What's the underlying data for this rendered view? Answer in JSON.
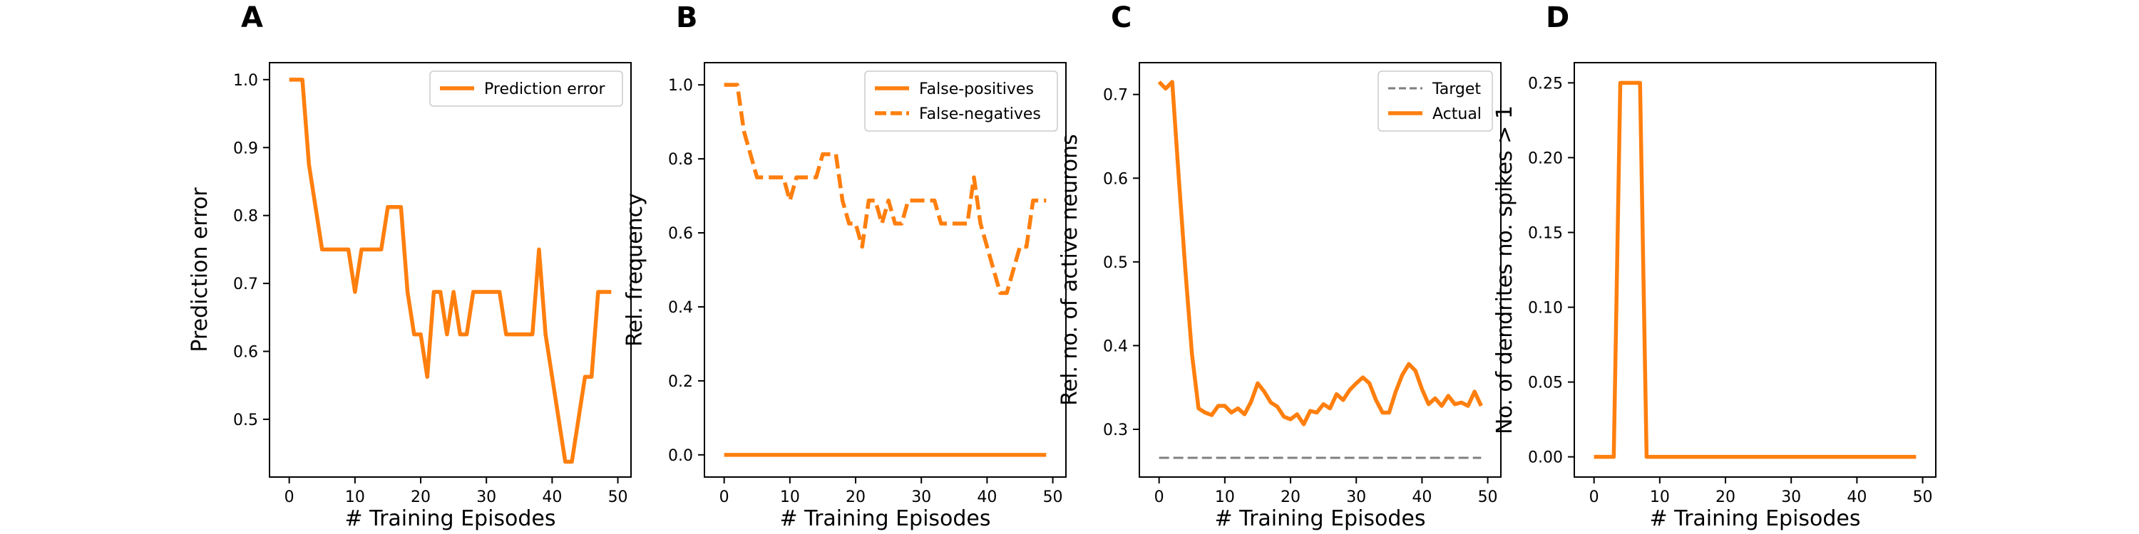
{
  "colors": {
    "series": "#ff7f0e",
    "target": "#7f7f7f",
    "axis": "#000000",
    "legend_border": "#cccccc"
  },
  "panels": [
    {
      "letter": "A",
      "chart_data": {
        "type": "line",
        "xlabel": "# Training Episodes",
        "ylabel": "Prediction error",
        "xlim": [
          -3,
          52
        ],
        "ylim": [
          0.415,
          1.025
        ],
        "xticks": [
          0,
          10,
          20,
          30,
          40,
          50
        ],
        "yticks": [
          0.5,
          0.6,
          0.7,
          0.8,
          0.9,
          1.0
        ],
        "ytick_labels": [
          "0.5",
          "0.6",
          "0.7",
          "0.8",
          "0.9",
          "1.0"
        ],
        "legend": {
          "position": "top-right"
        },
        "series": [
          {
            "name": "Prediction error",
            "style": "solid",
            "x": [
              0,
              1,
              2,
              3,
              4,
              5,
              6,
              7,
              8,
              9,
              10,
              11,
              12,
              13,
              14,
              15,
              16,
              17,
              18,
              19,
              20,
              21,
              22,
              23,
              24,
              25,
              26,
              27,
              28,
              29,
              30,
              31,
              32,
              33,
              34,
              35,
              36,
              37,
              38,
              39,
              40,
              41,
              42,
              43,
              44,
              45,
              46,
              47,
              48,
              49
            ],
            "y": [
              1.0,
              1.0,
              1.0,
              0.875,
              0.8125,
              0.75,
              0.75,
              0.75,
              0.75,
              0.75,
              0.6875,
              0.75,
              0.75,
              0.75,
              0.75,
              0.8125,
              0.8125,
              0.8125,
              0.6875,
              0.625,
              0.625,
              0.5625,
              0.6875,
              0.6875,
              0.625,
              0.6875,
              0.625,
              0.625,
              0.6875,
              0.6875,
              0.6875,
              0.6875,
              0.6875,
              0.625,
              0.625,
              0.625,
              0.625,
              0.625,
              0.75,
              0.625,
              0.5625,
              0.5,
              0.4375,
              0.4375,
              0.5,
              0.5625,
              0.5625,
              0.6875,
              0.6875,
              0.6875
            ]
          }
        ]
      }
    },
    {
      "letter": "B",
      "chart_data": {
        "type": "line",
        "xlabel": "# Training Episodes",
        "ylabel": "Rel. frequency",
        "xlim": [
          -3,
          52
        ],
        "ylim": [
          -0.06,
          1.06
        ],
        "xticks": [
          0,
          10,
          20,
          30,
          40,
          50
        ],
        "yticks": [
          0.0,
          0.2,
          0.4,
          0.6,
          0.8,
          1.0
        ],
        "ytick_labels": [
          "0.0",
          "0.2",
          "0.4",
          "0.6",
          "0.8",
          "1.0"
        ],
        "legend": {
          "position": "top-right"
        },
        "series": [
          {
            "name": "False-positives",
            "style": "solid",
            "x": [
              0,
              49
            ],
            "y": [
              0,
              0
            ]
          },
          {
            "name": "False-negatives",
            "style": "dashed",
            "x": [
              0,
              1,
              2,
              3,
              4,
              5,
              6,
              7,
              8,
              9,
              10,
              11,
              12,
              13,
              14,
              15,
              16,
              17,
              18,
              19,
              20,
              21,
              22,
              23,
              24,
              25,
              26,
              27,
              28,
              29,
              30,
              31,
              32,
              33,
              34,
              35,
              36,
              37,
              38,
              39,
              40,
              41,
              42,
              43,
              44,
              45,
              46,
              47,
              48,
              49
            ],
            "y": [
              1.0,
              1.0,
              1.0,
              0.875,
              0.8125,
              0.75,
              0.75,
              0.75,
              0.75,
              0.75,
              0.6875,
              0.75,
              0.75,
              0.75,
              0.75,
              0.8125,
              0.8125,
              0.8125,
              0.6875,
              0.625,
              0.625,
              0.5625,
              0.6875,
              0.6875,
              0.625,
              0.6875,
              0.625,
              0.625,
              0.6875,
              0.6875,
              0.6875,
              0.6875,
              0.6875,
              0.625,
              0.625,
              0.625,
              0.625,
              0.625,
              0.75,
              0.625,
              0.5625,
              0.5,
              0.4375,
              0.4375,
              0.5,
              0.5625,
              0.5625,
              0.6875,
              0.6875,
              0.6875
            ]
          }
        ]
      }
    },
    {
      "letter": "C",
      "chart_data": {
        "type": "line",
        "xlabel": "# Training Episodes",
        "ylabel": "Rel. no. of active neurons",
        "xlim": [
          -3,
          52
        ],
        "ylim": [
          0.243,
          0.738
        ],
        "xticks": [
          0,
          10,
          20,
          30,
          40,
          50
        ],
        "yticks": [
          0.3,
          0.4,
          0.5,
          0.6,
          0.7
        ],
        "ytick_labels": [
          "0.3",
          "0.4",
          "0.5",
          "0.6",
          "0.7"
        ],
        "legend": {
          "position": "top-right"
        },
        "series": [
          {
            "name": "Target",
            "style": "dashed-thin",
            "color": "#7f7f7f",
            "x": [
              0,
              49
            ],
            "y": [
              0.266,
              0.266
            ]
          },
          {
            "name": "Actual",
            "style": "solid",
            "x": [
              0,
              1,
              2,
              3,
              4,
              5,
              6,
              7,
              8,
              9,
              10,
              11,
              12,
              13,
              14,
              15,
              16,
              17,
              18,
              19,
              20,
              21,
              22,
              23,
              24,
              25,
              26,
              27,
              28,
              29,
              30,
              31,
              32,
              33,
              34,
              35,
              36,
              37,
              38,
              39,
              40,
              41,
              42,
              43,
              44,
              45,
              46,
              47,
              48,
              49
            ],
            "y": [
              0.715,
              0.707,
              0.715,
              0.6,
              0.49,
              0.39,
              0.325,
              0.32,
              0.317,
              0.328,
              0.328,
              0.32,
              0.325,
              0.318,
              0.333,
              0.355,
              0.345,
              0.332,
              0.327,
              0.315,
              0.312,
              0.318,
              0.306,
              0.322,
              0.32,
              0.33,
              0.325,
              0.342,
              0.335,
              0.347,
              0.355,
              0.362,
              0.355,
              0.335,
              0.32,
              0.32,
              0.345,
              0.365,
              0.378,
              0.37,
              0.348,
              0.33,
              0.337,
              0.328,
              0.34,
              0.33,
              0.332,
              0.328,
              0.345,
              0.328
            ]
          }
        ]
      }
    },
    {
      "letter": "D",
      "chart_data": {
        "type": "line",
        "xlabel": "# Training Episodes",
        "ylabel": "No. of dendrites no. spikes > 1",
        "xlim": [
          -3,
          52
        ],
        "ylim": [
          -0.0135,
          0.2635
        ],
        "xticks": [
          0,
          10,
          20,
          30,
          40,
          50
        ],
        "yticks": [
          0.0,
          0.05,
          0.1,
          0.15,
          0.2,
          0.25
        ],
        "ytick_labels": [
          "0.00",
          "0.05",
          "0.10",
          "0.15",
          "0.20",
          "0.25"
        ],
        "legend": null,
        "series": [
          {
            "name": "",
            "style": "solid",
            "x": [
              0,
              1,
              2,
              3,
              4,
              5,
              6,
              7,
              8,
              9,
              49
            ],
            "y": [
              0,
              0,
              0,
              0,
              0.25,
              0.25,
              0.25,
              0.25,
              0,
              0,
              0
            ]
          }
        ]
      }
    }
  ]
}
